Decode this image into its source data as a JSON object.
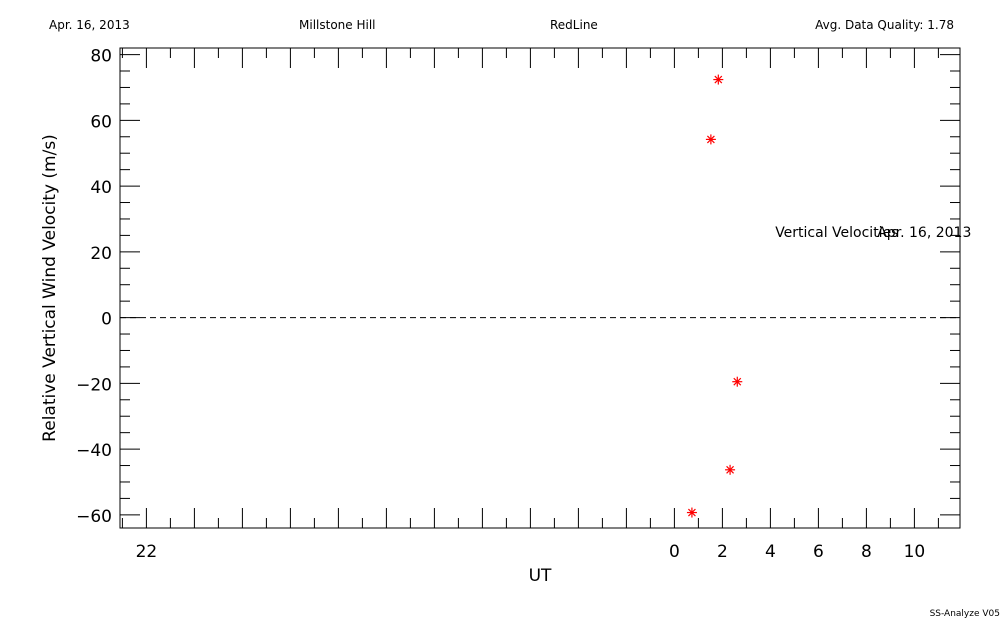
{
  "header": {
    "date": "Apr. 16, 2013",
    "station": "Millstone Hill",
    "line": "RedLine",
    "quality": "Avg. Data Quality: 1.78"
  },
  "footer": "SS-Analyze V05",
  "colors": {
    "points": "#ff0000",
    "axes": "#000000"
  },
  "chart_data": {
    "type": "scatter",
    "title": "",
    "xlabel": "UT",
    "ylabel": "Relative Vertical Wind Velocity (m/s)",
    "xlim": [
      -23.1,
      11.9
    ],
    "ylim": [
      -64,
      82
    ],
    "xticks": [
      -22,
      0,
      2,
      4,
      6,
      8,
      10
    ],
    "xtick_labels": [
      "22",
      "0",
      "2",
      "4",
      "6",
      "8",
      "10"
    ],
    "yticks": [
      -60,
      -40,
      -20,
      0,
      20,
      40,
      60,
      80
    ],
    "ytick_labels": [
      "−60",
      "−40",
      "−20",
      "0",
      "20",
      "40",
      "60",
      "80"
    ],
    "series": [
      {
        "marker": "asterisk",
        "color": "#ff0000",
        "x": [
          0.73,
          1.52,
          1.83,
          2.32,
          2.62
        ],
        "y": [
          -59.3,
          54.2,
          72.4,
          -46.3,
          -19.5
        ]
      }
    ],
    "reference_line": {
      "y": 0,
      "style": "dashed"
    },
    "annotations": [
      {
        "text": "Vertical Velocities"
      },
      {
        "text": "Apr. 16, 2013"
      }
    ]
  }
}
